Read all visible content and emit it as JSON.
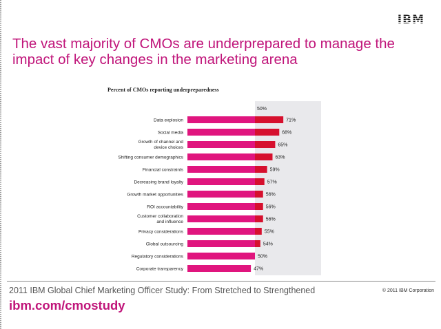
{
  "header": {
    "logo_text": "IBM"
  },
  "slide": {
    "title": "The vast majority of CMOs are underprepared to manage the impact of key changes in the marketing arena"
  },
  "chart_data": {
    "type": "bar",
    "orientation": "horizontal",
    "title": "Percent of CMOs reporting underpreparedness",
    "reference_label": "50%",
    "reference_value": 50,
    "categories": [
      [
        "Data explosion"
      ],
      [
        "Social media"
      ],
      [
        "Growth of channel and",
        "device choices"
      ],
      [
        "Shifting consumer demographics"
      ],
      [
        "Financial constraints"
      ],
      [
        "Decreasing brand loyalty"
      ],
      [
        "Growth market opportunities"
      ],
      [
        "ROI accountability"
      ],
      [
        "Customer collaboration",
        "and influence"
      ],
      [
        "Privacy considerations"
      ],
      [
        "Global outsourcing"
      ],
      [
        "Regulatory considerations"
      ],
      [
        "Corporate transparency"
      ]
    ],
    "values": [
      71,
      68,
      65,
      63,
      59,
      57,
      56,
      56,
      56,
      55,
      54,
      50,
      47
    ],
    "value_labels": [
      "71%",
      "68%",
      "65%",
      "63%",
      "59%",
      "57%",
      "56%",
      "56%",
      "56%",
      "55%",
      "54%",
      "50%",
      "47%"
    ],
    "colors": {
      "base": "#e0157e",
      "above_reference": "#d6102e",
      "reference_band": "#e9e9ec"
    },
    "xlim": [
      0,
      75
    ]
  },
  "footer": {
    "study": "2011 IBM Global Chief Marketing Officer Study: From Stretched to Strengthened",
    "url": "ibm.com/cmostudy",
    "copyright": "© 2011 IBM Corporation"
  }
}
